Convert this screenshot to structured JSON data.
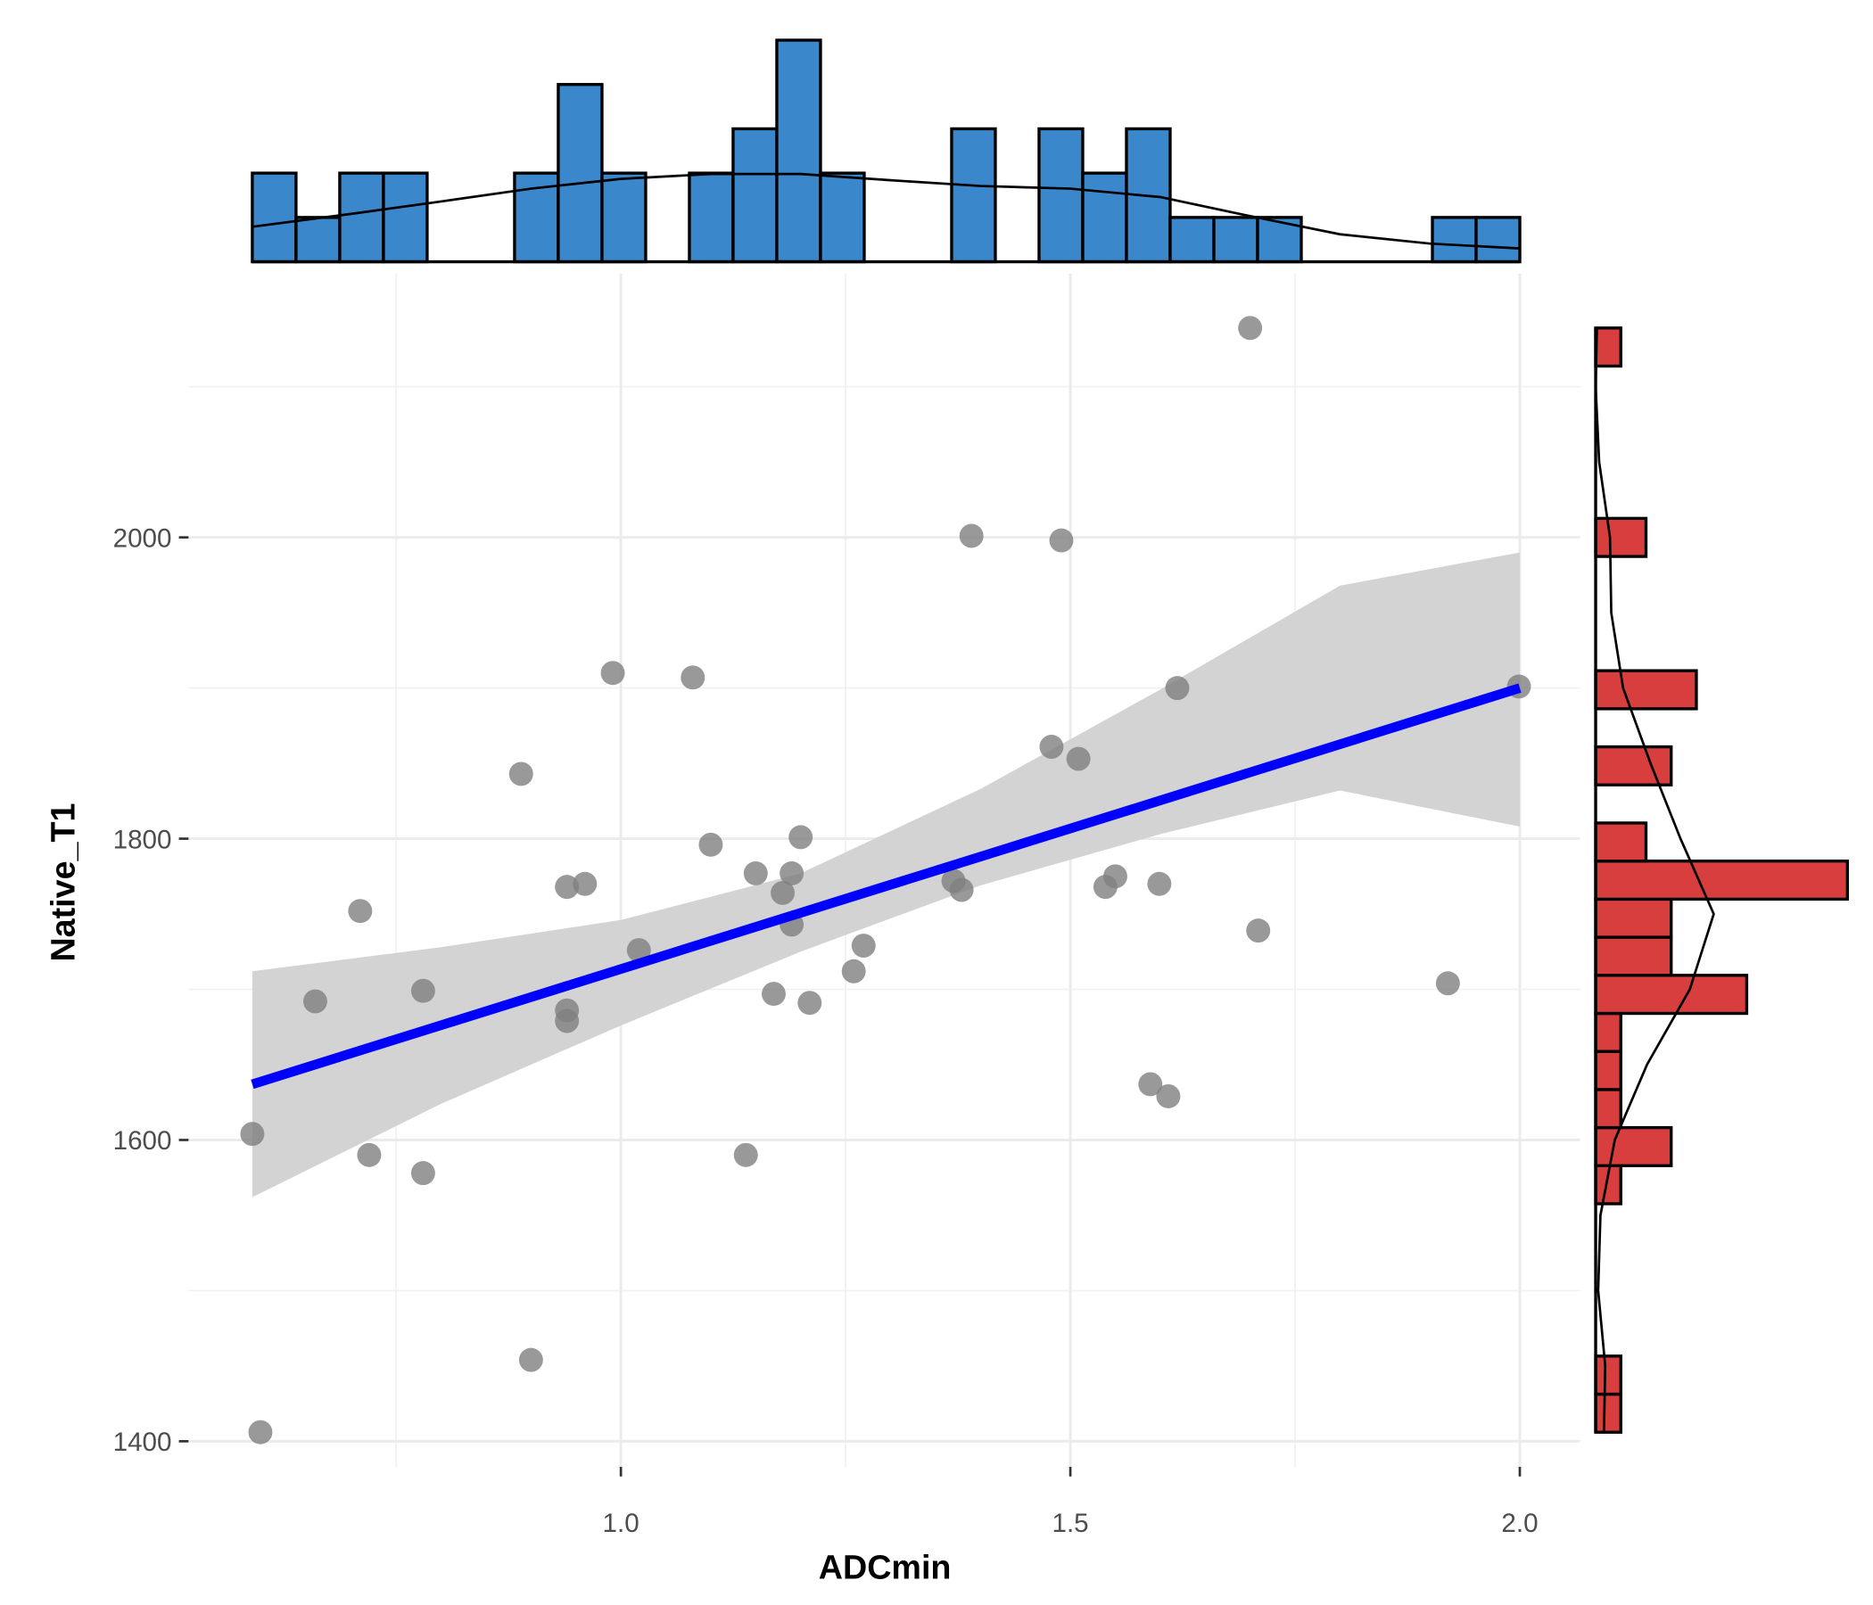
{
  "chart_data": [
    {
      "type": "scatter",
      "x_label": "ADCmin",
      "y_label": "Native_T1",
      "x": [
        1.7,
        1.39,
        1.49,
        0.991,
        1.08,
        1.619,
        1.999,
        0.889,
        1.479,
        1.509,
        1.1,
        1.2,
        1.15,
        1.19,
        0.94,
        0.96,
        1.18,
        1.37,
        1.379,
        1.55,
        1.539,
        1.599,
        0.71,
        1.19,
        1.709,
        1.02,
        1.27,
        1.259,
        1.92,
        0.66,
        0.78,
        1.17,
        1.21,
        0.94,
        0.94,
        1.589,
        1.609,
        0.59,
        0.72,
        0.78,
        1.139,
        0.9,
        0.599
      ],
      "values": [
        2139,
        2001,
        1998,
        1910,
        1907,
        1900,
        1901,
        1843,
        1861,
        1853,
        1796,
        1801,
        1777,
        1777,
        1768,
        1770,
        1764,
        1772,
        1766,
        1775,
        1768,
        1770,
        1752,
        1743,
        1739,
        1726,
        1729,
        1712,
        1704,
        1692,
        1699,
        1697,
        1691,
        1686,
        1679,
        1637,
        1629,
        1604,
        1590,
        1578,
        1590,
        1454,
        1406
      ],
      "color": "#7f7f7f",
      "fit": {
        "x": [
          0.59,
          2.0
        ],
        "values": [
          1637,
          1900
        ],
        "color": "#0000ff"
      },
      "band": {
        "x": [
          0.59,
          0.8,
          1.0,
          1.2,
          1.4,
          1.6,
          1.8,
          2.0
        ],
        "lower": [
          1562,
          1624,
          1676,
          1725,
          1769,
          1803,
          1832,
          1808
        ],
        "upper": [
          1712,
          1728,
          1746,
          1777,
          1833,
          1899,
          1968,
          1990
        ],
        "color": "#d3d3d3"
      },
      "xlim": [
        0.519,
        2.067
      ],
      "ylim": [
        1383,
        2175
      ],
      "xticks": [
        {
          "value": 1,
          "label": "1.0"
        },
        1.5,
        {
          "value": 2,
          "label": "2.0"
        }
      ],
      "yticks": [
        1400,
        1600,
        1800,
        2000
      ],
      "x_minor_grid": [
        0.75,
        1.25,
        1.75
      ],
      "y_minor_grid": [
        1500,
        1700,
        1900,
        2100
      ],
      "grid": true
    },
    {
      "type": "histogram",
      "orientation": "vertical",
      "bins": [
        0.59,
        0.63862,
        0.68724,
        0.73586,
        0.78448,
        0.8331,
        0.88172,
        0.93034,
        0.97897,
        1.02759,
        1.07621,
        1.12483,
        1.17345,
        1.22207,
        1.27069,
        1.31931,
        1.36793,
        1.41655,
        1.46517,
        1.51379,
        1.56241,
        1.61103,
        1.65966,
        1.70828,
        1.7569,
        1.80552,
        1.85414,
        1.90276,
        1.95138,
        2.0
      ],
      "counts": [
        2,
        1,
        2,
        2,
        0,
        0,
        2,
        4,
        2,
        0,
        2,
        3,
        5,
        2,
        0,
        0,
        3,
        0,
        3,
        2,
        3,
        1,
        1,
        1,
        0,
        0,
        0,
        1,
        1
      ],
      "color": "#3b87cc",
      "density": {
        "x": [
          0.59,
          0.7,
          0.8,
          0.9,
          1.0,
          1.1,
          1.2,
          1.3,
          1.4,
          1.5,
          1.6,
          1.7,
          1.8,
          1.9,
          2.0
        ],
        "values": [
          0.79,
          1.08,
          1.36,
          1.65,
          1.87,
          1.98,
          1.98,
          1.84,
          1.71,
          1.65,
          1.46,
          1.03,
          0.62,
          0.41,
          0.3
        ]
      },
      "xlim": [
        0.519,
        2.067
      ],
      "ylim": [
        0,
        5.2
      ]
    },
    {
      "type": "histogram",
      "orientation": "horizontal",
      "bins": [
        1406,
        1431.28,
        1456.55,
        1481.83,
        1507.1,
        1532.38,
        1557.66,
        1582.93,
        1608.21,
        1633.48,
        1658.76,
        1684.03,
        1709.31,
        1734.59,
        1759.86,
        1785.14,
        1810.41,
        1835.69,
        1860.97,
        1886.24,
        1911.52,
        1936.79,
        1962.07,
        1987.34,
        2012.62,
        2037.9,
        2063.17,
        2088.45,
        2113.72,
        2139
      ],
      "counts": [
        1,
        1,
        0,
        0,
        0,
        0,
        1,
        3,
        1,
        1,
        1,
        6,
        3,
        3,
        10,
        2,
        0,
        3,
        0,
        4,
        0,
        0,
        0,
        2,
        0,
        0,
        0,
        0,
        1
      ],
      "color": "#d93e3e",
      "density": {
        "x": [
          1406,
          1450,
          1500,
          1550,
          1600,
          1650,
          1700,
          1750,
          1800,
          1850,
          1900,
          1950,
          2000,
          2050,
          2100,
          2139
        ],
        "values": [
          0.33,
          0.38,
          0.1,
          0.19,
          0.76,
          2.04,
          3.74,
          4.69,
          3.37,
          2.18,
          1.09,
          0.62,
          0.57,
          0.14,
          0.0,
          0.05
        ]
      },
      "xlim": [
        0,
        10.3
      ],
      "ylim": [
        1383,
        2175
      ]
    }
  ]
}
